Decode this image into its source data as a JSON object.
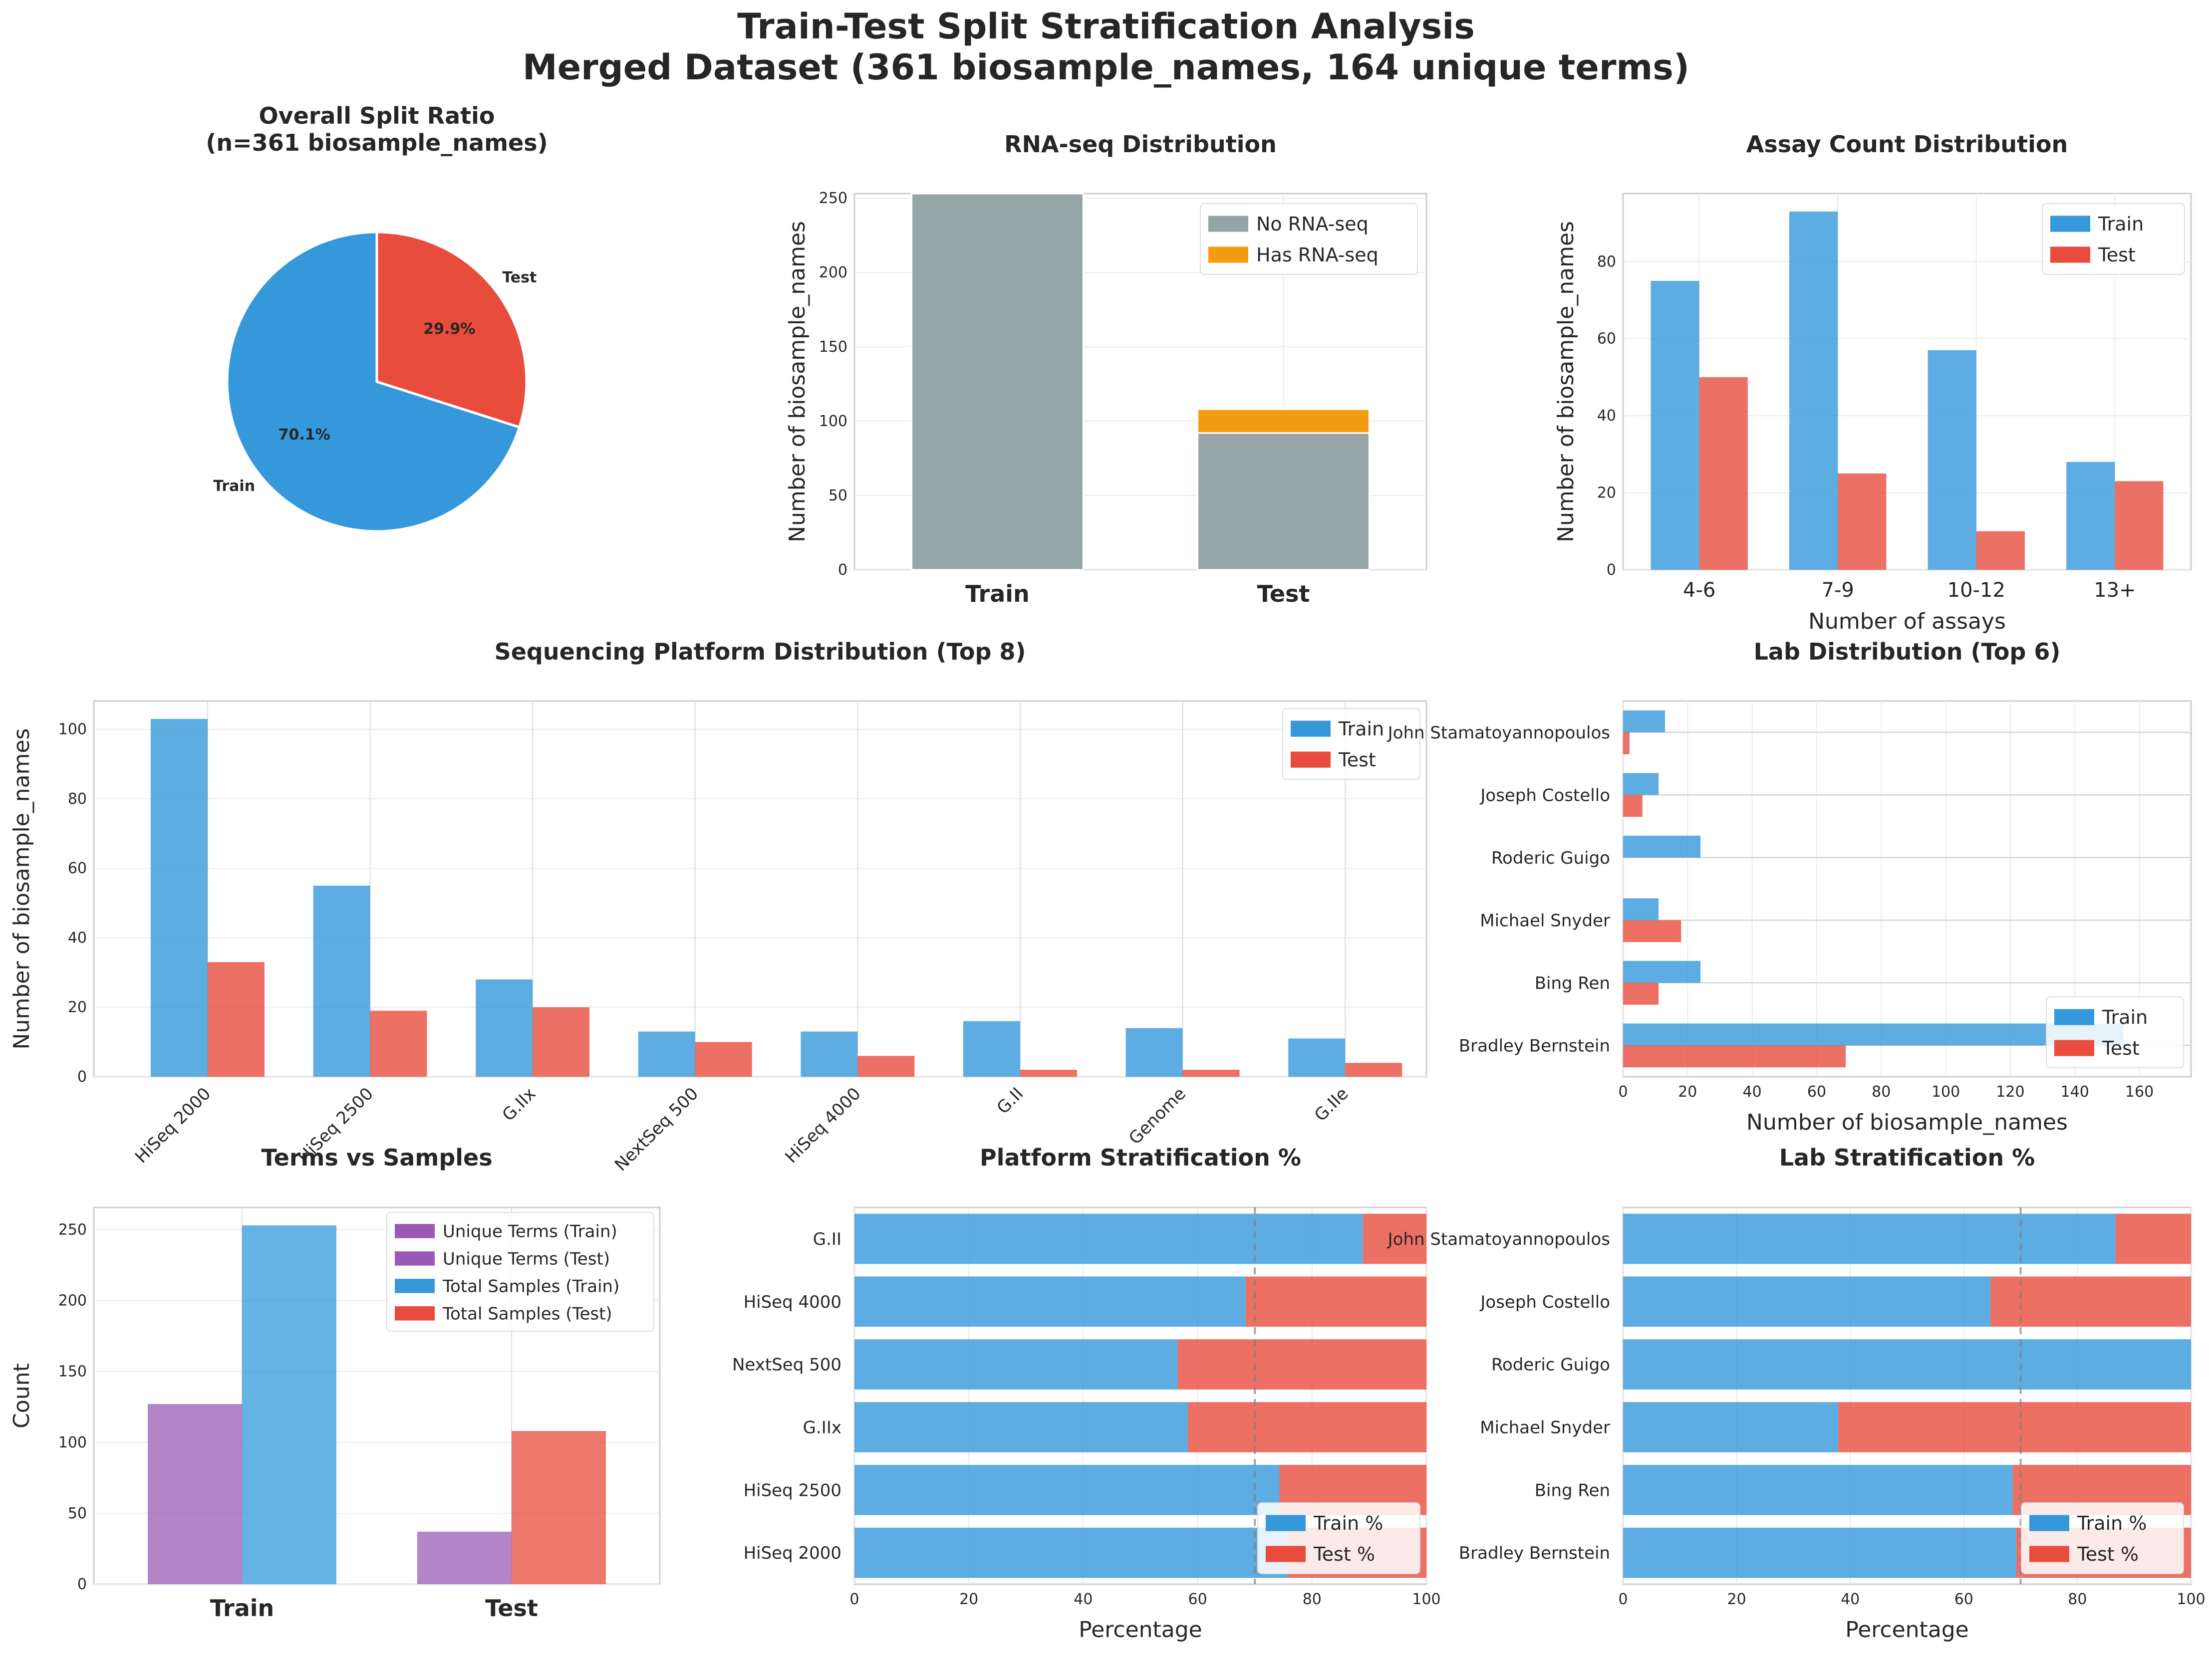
{
  "suptitle": {
    "line1": "Train-Test Split Stratification Analysis",
    "line2": "Merged Dataset (361 biosample_names, 164 unique terms)"
  },
  "colors": {
    "train": "#3498db",
    "test": "#e74c3c",
    "no_rnaseq": "#95a5a6",
    "has_rnaseq": "#f39c12",
    "terms": "#9b59b6"
  },
  "chart_data": [
    {
      "id": "pie",
      "type": "pie",
      "title": "Overall Split Ratio\n(n=361 biosample_names)",
      "labels": [
        "Train",
        "Test"
      ],
      "values": [
        253,
        108
      ],
      "pct_labels": [
        "70.1%",
        "29.9%"
      ]
    },
    {
      "id": "rnaseq",
      "type": "bar",
      "stacked": true,
      "title": "RNA-seq Distribution",
      "categories": [
        "Train",
        "Test"
      ],
      "series": [
        {
          "name": "No RNA-seq",
          "values": [
            253,
            92
          ]
        },
        {
          "name": "Has RNA-seq",
          "values": [
            0,
            16
          ]
        }
      ],
      "ylabel": "Number of biosample_names",
      "xlabel": "",
      "ylim": [
        0,
        253
      ],
      "yticks": [
        0,
        50,
        100,
        150,
        200,
        250
      ],
      "legend": "top-right"
    },
    {
      "id": "assay",
      "type": "bar",
      "title": "Assay Count Distribution",
      "categories": [
        "4-6",
        "7-9",
        "10-12",
        "13+"
      ],
      "series": [
        {
          "name": "Train",
          "values": [
            75,
            93,
            57,
            28
          ]
        },
        {
          "name": "Test",
          "values": [
            50,
            25,
            10,
            23
          ]
        }
      ],
      "xlabel": "Number of assays",
      "ylabel": "Number of biosample_names",
      "ylim": [
        0,
        97.65
      ],
      "yticks": [
        0,
        20,
        40,
        60,
        80
      ],
      "legend": "top-right"
    },
    {
      "id": "platform",
      "type": "bar",
      "title": "Sequencing Platform Distribution (Top 8)",
      "categories": [
        "HiSeq 2000",
        "HiSeq 2500",
        "G.IIx",
        "NextSeq 500",
        "HiSeq 4000",
        "G.II",
        "Genome",
        "G.IIe"
      ],
      "series": [
        {
          "name": "Train",
          "values": [
            103,
            55,
            28,
            13,
            13,
            16,
            14,
            11
          ]
        },
        {
          "name": "Test",
          "values": [
            33,
            19,
            20,
            10,
            6,
            2,
            2,
            4
          ]
        }
      ],
      "ylabel": "Number of biosample_names",
      "xlabel": "",
      "ylim": [
        0,
        108.15
      ],
      "yticks": [
        0,
        20,
        40,
        60,
        80,
        100
      ],
      "legend": "top-right"
    },
    {
      "id": "lab",
      "type": "bar",
      "orientation": "horizontal",
      "title": "Lab Distribution (Top 6)",
      "categories": [
        "Bradley Bernstein",
        "Bing Ren",
        "Michael Snyder",
        "Roderic Guigo",
        "Joseph Costello",
        "John Stamatoyannopoulos"
      ],
      "series": [
        {
          "name": "Train",
          "values": [
            155,
            24,
            11,
            24,
            11,
            13
          ]
        },
        {
          "name": "Test",
          "values": [
            69,
            11,
            18,
            0,
            6,
            2
          ]
        }
      ],
      "xlabel": "Number of biosample_names",
      "ylabel": "",
      "xlim": [
        0,
        176
      ],
      "xticks": [
        0,
        20,
        40,
        60,
        80,
        100,
        120,
        140,
        160
      ],
      "legend": "bottom-right"
    },
    {
      "id": "terms",
      "type": "bar",
      "title": "Terms vs Samples",
      "categories": [
        "Train",
        "Test"
      ],
      "series": [
        {
          "name": "Unique Terms (Train)",
          "values": [
            127,
            null
          ]
        },
        {
          "name": "Unique Terms (Test)",
          "values": [
            null,
            37
          ]
        },
        {
          "name": "Total Samples (Train)",
          "values": [
            253,
            null
          ]
        },
        {
          "name": "Total Samples (Test)",
          "values": [
            null,
            108
          ]
        }
      ],
      "ylabel": "Count",
      "xlabel": "",
      "ylim": [
        0,
        265.65
      ],
      "yticks": [
        0,
        50,
        100,
        150,
        200,
        250
      ],
      "legend": "top-right"
    },
    {
      "id": "platform_pct",
      "type": "bar",
      "orientation": "horizontal",
      "stacked": true,
      "title": "Platform Stratification %",
      "categories": [
        "HiSeq 2000",
        "HiSeq 2500",
        "G.IIx",
        "NextSeq 500",
        "HiSeq 4000",
        "G.II"
      ],
      "series": [
        {
          "name": "Train %",
          "values": [
            75.7,
            74.3,
            58.3,
            56.5,
            68.4,
            88.9
          ]
        },
        {
          "name": "Test %",
          "values": [
            24.3,
            25.7,
            41.7,
            43.5,
            31.6,
            11.1
          ]
        }
      ],
      "xlabel": "Percentage",
      "ylabel": "",
      "xlim": [
        0,
        100
      ],
      "xticks": [
        0,
        20,
        40,
        60,
        80,
        100
      ],
      "reference_line": 70,
      "legend": "bottom-right"
    },
    {
      "id": "lab_pct",
      "type": "bar",
      "orientation": "horizontal",
      "stacked": true,
      "title": "Lab Stratification %",
      "categories": [
        "Bradley Bernstein",
        "Bing Ren",
        "Michael Snyder",
        "Roderic Guigo",
        "Joseph Costello",
        "John Stamatoyannopoulos"
      ],
      "series": [
        {
          "name": "Train %",
          "values": [
            69.2,
            68.6,
            37.9,
            100,
            64.7,
            86.7
          ]
        },
        {
          "name": "Test %",
          "values": [
            30.8,
            31.4,
            62.1,
            0,
            35.3,
            13.3
          ]
        }
      ],
      "xlabel": "Percentage",
      "ylabel": "",
      "xlim": [
        0,
        100
      ],
      "xticks": [
        0,
        20,
        40,
        60,
        80,
        100
      ],
      "reference_line": 70,
      "legend": "bottom-right"
    }
  ]
}
